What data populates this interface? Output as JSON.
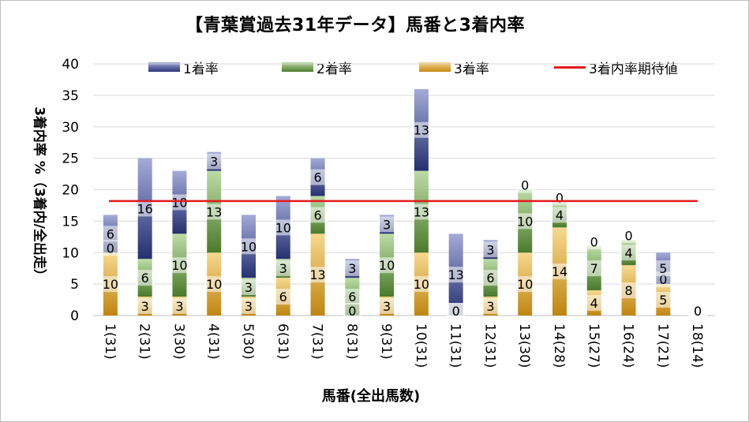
{
  "chart_data": {
    "type": "bar",
    "stacked": true,
    "title": "【青葉賞過去31年データ】馬番と3着内率",
    "xlabel": "馬番(全出馬数)",
    "ylabel": "3着内率 %（3着内/全出走）",
    "ylim": [
      0,
      40
    ],
    "yticks": [
      0,
      5,
      10,
      15,
      20,
      25,
      30,
      35,
      40
    ],
    "grid": true,
    "legend_position": "top",
    "categories": [
      "1(31)",
      "2(31)",
      "3(30)",
      "4(31)",
      "5(30)",
      "6(31)",
      "7(31)",
      "8(31)",
      "9(31)",
      "10(31)",
      "11(31)",
      "12(31)",
      "13(30)",
      "14(28)",
      "15(27)",
      "16(24)",
      "17(21)",
      "18(14)"
    ],
    "series": [
      {
        "name": "3着率",
        "color": "#d9a730",
        "values": [
          10,
          3,
          3,
          10,
          3,
          6,
          13,
          0,
          3,
          10,
          0,
          3,
          10,
          14,
          4,
          8,
          5,
          0
        ]
      },
      {
        "name": "2着率",
        "color": "#6aa84f",
        "values": [
          0,
          6,
          10,
          13,
          3,
          3,
          6,
          6,
          10,
          13,
          0,
          6,
          10,
          4,
          7,
          4,
          0,
          0
        ]
      },
      {
        "name": "1着率",
        "color": "#3c4a96",
        "values": [
          6,
          16,
          10,
          3,
          10,
          10,
          6,
          3,
          3,
          13,
          13,
          3,
          0,
          0,
          0,
          0,
          5,
          0
        ]
      }
    ],
    "reference_line": {
      "name": "3着内率期待値",
      "color": "#e31a1c",
      "value": 18.2
    }
  }
}
